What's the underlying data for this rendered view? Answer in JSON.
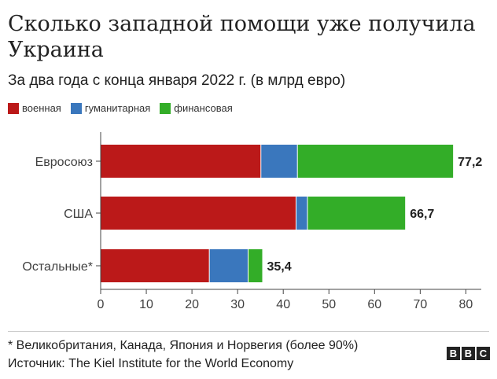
{
  "title": "Сколько западной помощи уже получила Украина",
  "subtitle": "За два года с конца января 2022 г. (в млрд евро)",
  "footnote": "* Великобритания, Канада, Япония и Норвегия (более 90%)",
  "source": "Источник: The Kiel Institute for the World Economy",
  "logo": [
    "B",
    "B",
    "C"
  ],
  "chart_data": {
    "type": "bar",
    "orientation": "horizontal",
    "stacked": true,
    "categories": [
      "Евросоюз",
      "США",
      "Остальные*"
    ],
    "series": [
      {
        "name": "военная",
        "color": "#bb1919",
        "values": [
          35.1,
          42.8,
          23.8
        ]
      },
      {
        "name": "гуманитарная",
        "color": "#3a77bd",
        "values": [
          8.0,
          2.5,
          8.5
        ]
      },
      {
        "name": "финансовая",
        "color": "#33ad28",
        "values": [
          34.1,
          21.4,
          3.1
        ]
      }
    ],
    "totals": [
      "77,2",
      "66,7",
      "35,4"
    ],
    "xticks": [
      0,
      10,
      20,
      30,
      40,
      50,
      60,
      70,
      80
    ],
    "xlim": [
      0,
      84
    ],
    "grid": false,
    "legend_position": "top-left"
  }
}
